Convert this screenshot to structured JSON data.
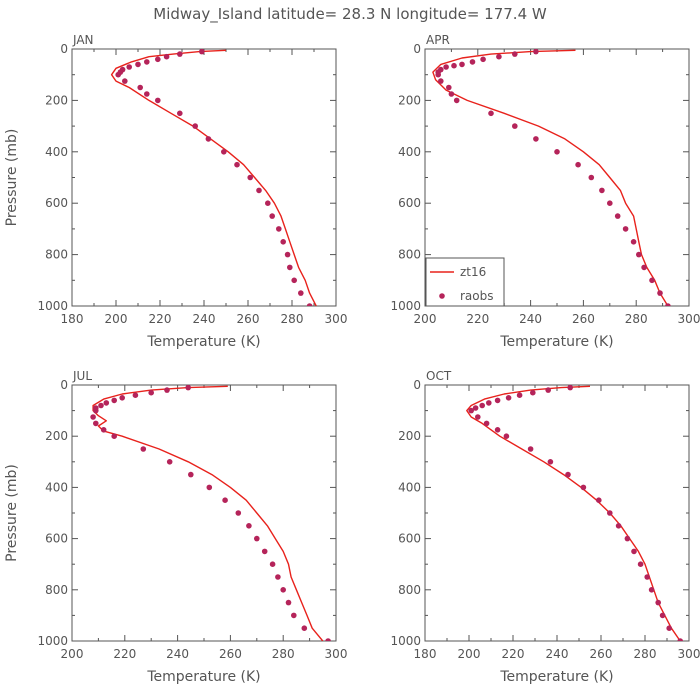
{
  "title": "Midway_Island  latitude= 28.3 N longitude= 177.4 W",
  "colors": {
    "model": "#e8221c",
    "obs": "#b5245a",
    "axis": "#555555",
    "text": "#555555"
  },
  "legend": {
    "placement": "bottom-right of APR panel",
    "entries": [
      {
        "label": "zt16",
        "style": "line"
      },
      {
        "label": "raobs",
        "style": "marker"
      }
    ]
  },
  "chart_data": [
    {
      "type": "line",
      "panel": "JAN",
      "xlabel": "Temperature (K)",
      "ylabel": "Pressure (mb)",
      "xlim": [
        180,
        300
      ],
      "ylim": [
        1000,
        0
      ],
      "xticks": [
        180,
        200,
        220,
        240,
        260,
        280,
        300
      ],
      "yticks": [
        0,
        200,
        400,
        600,
        800,
        1000
      ],
      "series": [
        {
          "name": "zt16",
          "style": "line",
          "points": [
            [
              250,
              5
            ],
            [
              238,
              10
            ],
            [
              226,
              20
            ],
            [
              215,
              30
            ],
            [
              207,
              50
            ],
            [
              200,
              75
            ],
            [
              198,
              100
            ],
            [
              200,
              125
            ],
            [
              206,
              150
            ],
            [
              215,
              200
            ],
            [
              225,
              250
            ],
            [
              235,
              300
            ],
            [
              243,
              350
            ],
            [
              251,
              400
            ],
            [
              258,
              450
            ],
            [
              263,
              500
            ],
            [
              268,
              550
            ],
            [
              272,
              600
            ],
            [
              275,
              650
            ],
            [
              277,
              700
            ],
            [
              279,
              750
            ],
            [
              281,
              800
            ],
            [
              283,
              850
            ],
            [
              286,
              900
            ],
            [
              288,
              950
            ],
            [
              291,
              1000
            ]
          ]
        },
        {
          "name": "raobs",
          "style": "marker",
          "points": [
            [
              239,
              10
            ],
            [
              229,
              20
            ],
            [
              223,
              30
            ],
            [
              219,
              40
            ],
            [
              214,
              50
            ],
            [
              210,
              60
            ],
            [
              206,
              70
            ],
            [
              203,
              80
            ],
            [
              202,
              90
            ],
            [
              201,
              100
            ],
            [
              204,
              125
            ],
            [
              211,
              150
            ],
            [
              214,
              175
            ],
            [
              219,
              200
            ],
            [
              229,
              250
            ],
            [
              236,
              300
            ],
            [
              242,
              350
            ],
            [
              249,
              400
            ],
            [
              255,
              450
            ],
            [
              261,
              500
            ],
            [
              265,
              550
            ],
            [
              269,
              600
            ],
            [
              271,
              650
            ],
            [
              274,
              700
            ],
            [
              276,
              750
            ],
            [
              278,
              800
            ],
            [
              279,
              850
            ],
            [
              281,
              900
            ],
            [
              284,
              950
            ],
            [
              288,
              1000
            ]
          ]
        }
      ]
    },
    {
      "type": "line",
      "panel": "APR",
      "xlabel": "Temperature (K)",
      "ylabel": "",
      "xlim": [
        200,
        300
      ],
      "ylim": [
        1000,
        0
      ],
      "xticks": [
        200,
        220,
        240,
        260,
        280,
        300
      ],
      "yticks": [
        0,
        200,
        400,
        600,
        800,
        1000
      ],
      "series": [
        {
          "name": "zt16",
          "style": "line",
          "points": [
            [
              257,
              5
            ],
            [
              240,
              10
            ],
            [
              225,
              20
            ],
            [
              214,
              35
            ],
            [
              206,
              60
            ],
            [
              203,
              90
            ],
            [
              204,
              120
            ],
            [
              208,
              160
            ],
            [
              216,
              200
            ],
            [
              230,
              250
            ],
            [
              243,
              300
            ],
            [
              253,
              350
            ],
            [
              260,
              400
            ],
            [
              266,
              450
            ],
            [
              270,
              500
            ],
            [
              274,
              550
            ],
            [
              276,
              600
            ],
            [
              279,
              650
            ],
            [
              280,
              700
            ],
            [
              281,
              750
            ],
            [
              282,
              800
            ],
            [
              284,
              850
            ],
            [
              287,
              900
            ],
            [
              289,
              950
            ],
            [
              292,
              1000
            ]
          ]
        },
        {
          "name": "raobs",
          "style": "marker",
          "points": [
            [
              242,
              10
            ],
            [
              234,
              20
            ],
            [
              228,
              30
            ],
            [
              222,
              40
            ],
            [
              218,
              50
            ],
            [
              214,
              60
            ],
            [
              211,
              65
            ],
            [
              208,
              70
            ],
            [
              206,
              80
            ],
            [
              205,
              90
            ],
            [
              205,
              100
            ],
            [
              206,
              125
            ],
            [
              209,
              150
            ],
            [
              210,
              175
            ],
            [
              212,
              200
            ],
            [
              225,
              250
            ],
            [
              234,
              300
            ],
            [
              242,
              350
            ],
            [
              250,
              400
            ],
            [
              258,
              450
            ],
            [
              263,
              500
            ],
            [
              267,
              550
            ],
            [
              270,
              600
            ],
            [
              273,
              650
            ],
            [
              276,
              700
            ],
            [
              279,
              750
            ],
            [
              281,
              800
            ],
            [
              283,
              850
            ],
            [
              286,
              900
            ],
            [
              289,
              950
            ],
            [
              292,
              1000
            ]
          ]
        }
      ]
    },
    {
      "type": "line",
      "panel": "JUL",
      "xlabel": "Temperature (K)",
      "ylabel": "Pressure (mb)",
      "xlim": [
        200,
        300
      ],
      "ylim": [
        1000,
        0
      ],
      "xticks": [
        200,
        220,
        240,
        260,
        280,
        300
      ],
      "yticks": [
        0,
        200,
        400,
        600,
        800,
        1000
      ],
      "series": [
        {
          "name": "zt16",
          "style": "line",
          "points": [
            [
              259,
              5
            ],
            [
              244,
              10
            ],
            [
              230,
              20
            ],
            [
              219,
              35
            ],
            [
              212,
              55
            ],
            [
              208,
              80
            ],
            [
              208,
              100
            ],
            [
              210,
              120
            ],
            [
              213,
              140
            ],
            [
              210,
              160
            ],
            [
              212,
              180
            ],
            [
              219,
              200
            ],
            [
              233,
              250
            ],
            [
              244,
              300
            ],
            [
              253,
              350
            ],
            [
              260,
              400
            ],
            [
              266,
              450
            ],
            [
              270,
              500
            ],
            [
              274,
              550
            ],
            [
              277,
              600
            ],
            [
              280,
              650
            ],
            [
              282,
              700
            ],
            [
              283,
              750
            ],
            [
              285,
              800
            ],
            [
              287,
              850
            ],
            [
              289,
              900
            ],
            [
              291,
              950
            ],
            [
              295,
              1000
            ]
          ]
        },
        {
          "name": "raobs",
          "style": "marker",
          "points": [
            [
              244,
              10
            ],
            [
              236,
              20
            ],
            [
              230,
              30
            ],
            [
              224,
              40
            ],
            [
              219,
              50
            ],
            [
              216,
              60
            ],
            [
              213,
              70
            ],
            [
              211,
              80
            ],
            [
              209,
              90
            ],
            [
              209,
              100
            ],
            [
              208,
              125
            ],
            [
              209,
              150
            ],
            [
              212,
              175
            ],
            [
              216,
              200
            ],
            [
              227,
              250
            ],
            [
              237,
              300
            ],
            [
              245,
              350
            ],
            [
              252,
              400
            ],
            [
              258,
              450
            ],
            [
              263,
              500
            ],
            [
              267,
              550
            ],
            [
              270,
              600
            ],
            [
              273,
              650
            ],
            [
              276,
              700
            ],
            [
              278,
              750
            ],
            [
              280,
              800
            ],
            [
              282,
              850
            ],
            [
              284,
              900
            ],
            [
              288,
              950
            ],
            [
              297,
              1000
            ]
          ]
        }
      ]
    },
    {
      "type": "line",
      "panel": "OCT",
      "xlabel": "Temperature (K)",
      "ylabel": "",
      "xlim": [
        180,
        300
      ],
      "ylim": [
        1000,
        0
      ],
      "xticks": [
        180,
        200,
        220,
        240,
        260,
        280,
        300
      ],
      "yticks": [
        0,
        200,
        400,
        600,
        800,
        1000
      ],
      "series": [
        {
          "name": "zt16",
          "style": "line",
          "points": [
            [
              255,
              5
            ],
            [
              242,
              10
            ],
            [
              228,
              20
            ],
            [
              216,
              35
            ],
            [
              207,
              55
            ],
            [
              201,
              80
            ],
            [
              199,
              100
            ],
            [
              201,
              125
            ],
            [
              206,
              150
            ],
            [
              214,
              200
            ],
            [
              224,
              250
            ],
            [
              234,
              300
            ],
            [
              243,
              350
            ],
            [
              251,
              400
            ],
            [
              258,
              450
            ],
            [
              264,
              500
            ],
            [
              269,
              550
            ],
            [
              273,
              600
            ],
            [
              277,
              650
            ],
            [
              280,
              700
            ],
            [
              282,
              750
            ],
            [
              284,
              800
            ],
            [
              286,
              850
            ],
            [
              289,
              900
            ],
            [
              292,
              950
            ],
            [
              296,
              1000
            ]
          ]
        },
        {
          "name": "raobs",
          "style": "marker",
          "points": [
            [
              246,
              10
            ],
            [
              236,
              20
            ],
            [
              229,
              30
            ],
            [
              223,
              40
            ],
            [
              218,
              50
            ],
            [
              213,
              60
            ],
            [
              209,
              70
            ],
            [
              206,
              80
            ],
            [
              203,
              90
            ],
            [
              201,
              100
            ],
            [
              204,
              125
            ],
            [
              208,
              150
            ],
            [
              213,
              175
            ],
            [
              217,
              200
            ],
            [
              228,
              250
            ],
            [
              237,
              300
            ],
            [
              245,
              350
            ],
            [
              252,
              400
            ],
            [
              259,
              450
            ],
            [
              264,
              500
            ],
            [
              268,
              550
            ],
            [
              272,
              600
            ],
            [
              275,
              650
            ],
            [
              278,
              700
            ],
            [
              281,
              750
            ],
            [
              283,
              800
            ],
            [
              286,
              850
            ],
            [
              288,
              900
            ],
            [
              291,
              950
            ],
            [
              296,
              1000
            ]
          ]
        }
      ]
    }
  ]
}
